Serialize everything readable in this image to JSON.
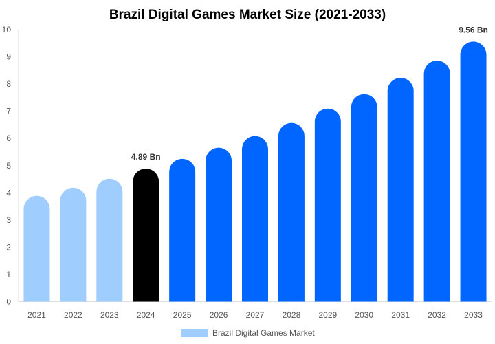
{
  "chart_data": {
    "type": "bar",
    "title": "Brazil Digital Games Market Size (2021-2033)",
    "xlabel": "",
    "ylabel": "",
    "categories": [
      "2021",
      "2022",
      "2023",
      "2024",
      "2025",
      "2026",
      "2027",
      "2028",
      "2029",
      "2030",
      "2031",
      "2032",
      "2033"
    ],
    "series": [
      {
        "name": "Brazil Digital Games Market",
        "values": [
          3.89,
          4.19,
          4.52,
          4.89,
          5.25,
          5.66,
          6.09,
          6.57,
          7.1,
          7.63,
          8.23,
          8.86,
          9.56
        ]
      }
    ],
    "bar_colors": [
      "#9fcdfd",
      "#9fcdfd",
      "#9fcdfd",
      "#000000",
      "#0066ff",
      "#0066ff",
      "#0066ff",
      "#0066ff",
      "#0066ff",
      "#0066ff",
      "#0066ff",
      "#0066ff",
      "#0066ff"
    ],
    "data_labels": [
      {
        "category": "2024",
        "text": "4.89 Bn"
      },
      {
        "category": "2033",
        "text": "9.56 Bn"
      }
    ],
    "ylim": [
      0,
      10
    ],
    "yticks": [
      "0",
      "1",
      "2",
      "3",
      "4",
      "5",
      "6",
      "7",
      "8",
      "9",
      "10"
    ],
    "grid": false,
    "legend": {
      "position": "bottom",
      "label": "Brazil Digital Games Market",
      "color": "#9fcdfd"
    }
  }
}
